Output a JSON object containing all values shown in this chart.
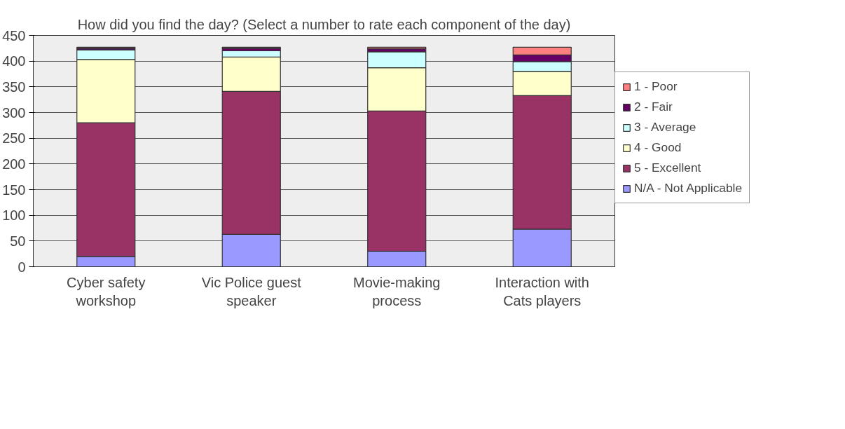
{
  "chart_data": {
    "type": "bar",
    "title": "How did you find the day? (Select a number to rate each component of the day)",
    "categories": [
      "Cyber safety workshop",
      "Vic Police guest speaker",
      "Movie-making process",
      "Interaction with Cats players"
    ],
    "stacked": true,
    "series": [
      {
        "name": "N/A - Not Applicable",
        "color": "#9999ff",
        "values": [
          20,
          63,
          30,
          73
        ]
      },
      {
        "name": "5 - Excellent",
        "color": "#993366",
        "values": [
          260,
          278,
          273,
          260
        ]
      },
      {
        "name": "4 - Good",
        "color": "#ffffcc",
        "values": [
          123,
          67,
          84,
          47
        ]
      },
      {
        "name": "3 - Average",
        "color": "#ccffff",
        "values": [
          19,
          12,
          31,
          19
        ]
      },
      {
        "name": "2 - Fair",
        "color": "#660066",
        "values": [
          3,
          5,
          6,
          13
        ]
      },
      {
        "name": "1 - Poor",
        "color": "#ff8080",
        "values": [
          2,
          2,
          3,
          15
        ]
      }
    ],
    "ylim": [
      0,
      450
    ],
    "yticks": [
      0,
      50,
      100,
      150,
      200,
      250,
      300,
      350,
      400,
      450
    ],
    "grid": "y",
    "legend": "right"
  }
}
